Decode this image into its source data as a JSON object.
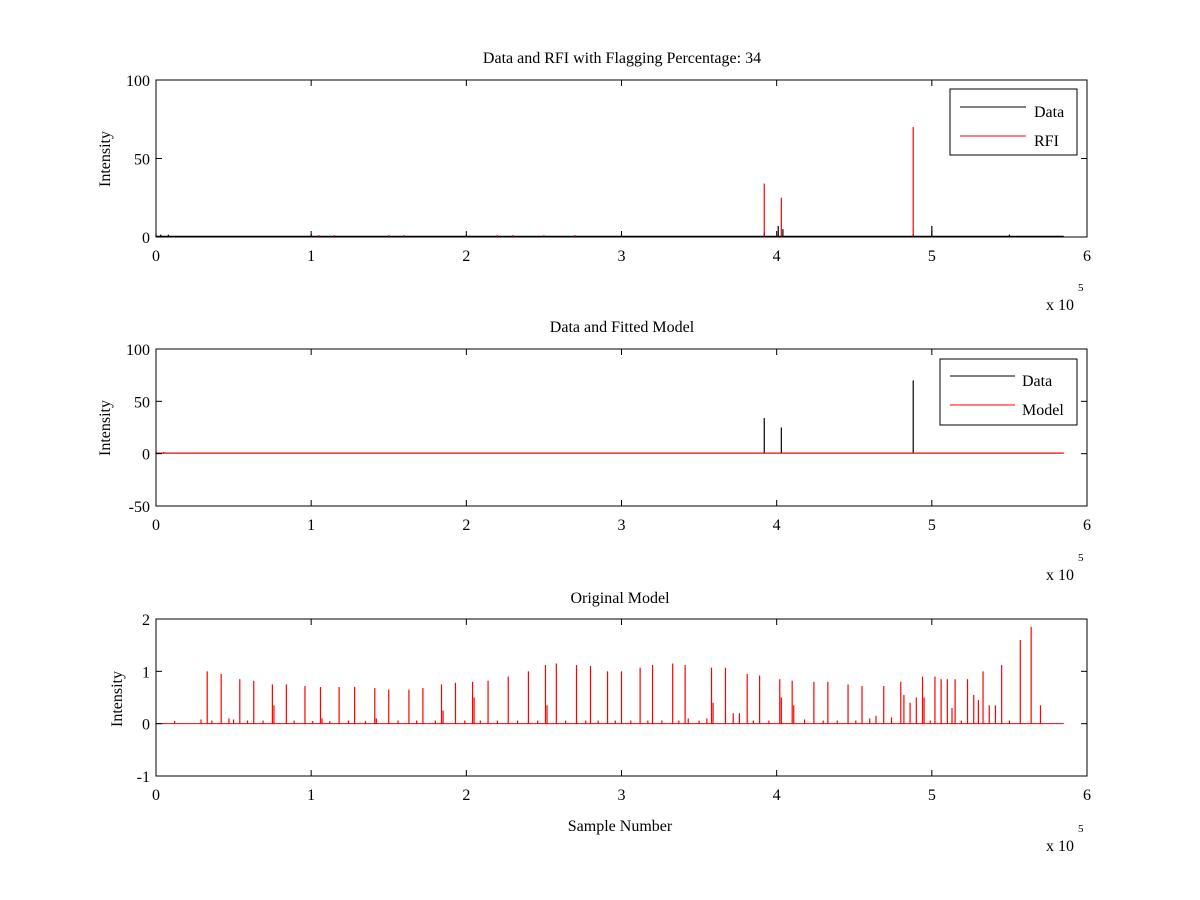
{
  "chart_data": [
    {
      "type": "line",
      "title": "Data and RFI with Flagging Percentage: 34",
      "xlabel": "",
      "ylabel": "Intensity",
      "xlim": [
        0,
        600000
      ],
      "ylim": [
        0,
        100
      ],
      "xticks": [
        0,
        1,
        2,
        3,
        4,
        5,
        6
      ],
      "yticks": [
        0,
        50,
        100
      ],
      "x_multiplier": "x 10",
      "x_multiplier_exp": "5",
      "legend_position": "top-right",
      "series": [
        {
          "name": "Data",
          "color": "#000000",
          "baseline": 0.5,
          "spikes": [
            {
              "x": 0,
              "y": 2
            },
            {
              "x": 3000,
              "y": 1.5
            },
            {
              "x": 8000,
              "y": 1.5
            },
            {
              "x": 100000,
              "y": 1.5
            },
            {
              "x": 200000,
              "y": 1.2
            },
            {
              "x": 300000,
              "y": 1.2
            },
            {
              "x": 392000,
              "y": 3
            },
            {
              "x": 401000,
              "y": 7
            },
            {
              "x": 404000,
              "y": 5
            },
            {
              "x": 488000,
              "y": 2
            },
            {
              "x": 500000,
              "y": 7
            },
            {
              "x": 550000,
              "y": 1.5
            }
          ]
        },
        {
          "name": "RFI",
          "color": "#ff0000",
          "baseline": 0,
          "spikes": [
            {
              "x": 100000,
              "y": 2
            },
            {
              "x": 105000,
              "y": 1.2
            },
            {
              "x": 115000,
              "y": 1.2
            },
            {
              "x": 150000,
              "y": 1.2
            },
            {
              "x": 160000,
              "y": 1.2
            },
            {
              "x": 200000,
              "y": 1.5
            },
            {
              "x": 220000,
              "y": 1.2
            },
            {
              "x": 230000,
              "y": 1.2
            },
            {
              "x": 250000,
              "y": 1.2
            },
            {
              "x": 270000,
              "y": 1.2
            },
            {
              "x": 392000,
              "y": 34
            },
            {
              "x": 403000,
              "y": 25
            },
            {
              "x": 488000,
              "y": 70
            }
          ],
          "extent": [
            0,
            280000
          ]
        }
      ]
    },
    {
      "type": "line",
      "title": "Data and Fitted Model",
      "xlabel": "",
      "ylabel": "Intensity",
      "xlim": [
        0,
        600000
      ],
      "ylim": [
        -50,
        100
      ],
      "xticks": [
        0,
        1,
        2,
        3,
        4,
        5,
        6
      ],
      "yticks": [
        -50,
        0,
        50,
        100
      ],
      "x_multiplier": "x 10",
      "x_multiplier_exp": "5",
      "legend_position": "top-right",
      "series": [
        {
          "name": "Data",
          "color": "#000000",
          "baseline": 0.5,
          "spikes": [
            {
              "x": 0,
              "y": 2
            },
            {
              "x": 5000,
              "y": 1.5
            },
            {
              "x": 20000,
              "y": 0.8
            },
            {
              "x": 95000,
              "y": 1
            },
            {
              "x": 300000,
              "y": 1
            },
            {
              "x": 392000,
              "y": 34
            },
            {
              "x": 403000,
              "y": 25
            },
            {
              "x": 488000,
              "y": 70
            }
          ]
        },
        {
          "name": "Model",
          "color": "#ff0000",
          "baseline": 0.5,
          "spikes": []
        }
      ],
      "x_end": 585000
    },
    {
      "type": "line",
      "title": "Original Model",
      "xlabel": "Sample Number",
      "ylabel": "Intensity",
      "xlim": [
        0,
        600000
      ],
      "ylim": [
        -1,
        2
      ],
      "xticks": [
        0,
        1,
        2,
        3,
        4,
        5,
        6
      ],
      "yticks": [
        -1,
        0,
        1,
        2
      ],
      "x_multiplier": "x 10",
      "x_multiplier_exp": "5",
      "x_end": 585000,
      "series": [
        {
          "name": "",
          "color": "#ff0000",
          "baseline": 0,
          "spikes": [
            {
              "x": 12000,
              "y": 0.05
            },
            {
              "x": 29000,
              "y": 0.08
            },
            {
              "x": 33000,
              "y": 1.0
            },
            {
              "x": 36000,
              "y": 0.06
            },
            {
              "x": 42000,
              "y": 0.95
            },
            {
              "x": 47000,
              "y": 0.1
            },
            {
              "x": 50000,
              "y": 0.08
            },
            {
              "x": 54000,
              "y": 0.85
            },
            {
              "x": 59000,
              "y": 0.06
            },
            {
              "x": 63000,
              "y": 0.82
            },
            {
              "x": 69000,
              "y": 0.06
            },
            {
              "x": 75000,
              "y": 0.75
            },
            {
              "x": 76000,
              "y": 0.35
            },
            {
              "x": 84000,
              "y": 0.75
            },
            {
              "x": 89000,
              "y": 0.06
            },
            {
              "x": 96000,
              "y": 0.72
            },
            {
              "x": 101000,
              "y": 0.05
            },
            {
              "x": 106000,
              "y": 0.7
            },
            {
              "x": 107000,
              "y": 0.1
            },
            {
              "x": 112000,
              "y": 0.05
            },
            {
              "x": 118000,
              "y": 0.7
            },
            {
              "x": 124000,
              "y": 0.06
            },
            {
              "x": 128000,
              "y": 0.7
            },
            {
              "x": 135000,
              "y": 0.05
            },
            {
              "x": 141000,
              "y": 0.68
            },
            {
              "x": 142000,
              "y": 0.1
            },
            {
              "x": 150000,
              "y": 0.65
            },
            {
              "x": 156000,
              "y": 0.06
            },
            {
              "x": 163000,
              "y": 0.65
            },
            {
              "x": 168000,
              "y": 0.06
            },
            {
              "x": 172000,
              "y": 0.68
            },
            {
              "x": 180000,
              "y": 0.06
            },
            {
              "x": 184000,
              "y": 0.75
            },
            {
              "x": 185000,
              "y": 0.25
            },
            {
              "x": 193000,
              "y": 0.78
            },
            {
              "x": 199000,
              "y": 0.06
            },
            {
              "x": 204000,
              "y": 0.8
            },
            {
              "x": 205000,
              "y": 0.5
            },
            {
              "x": 209000,
              "y": 0.06
            },
            {
              "x": 214000,
              "y": 0.82
            },
            {
              "x": 220000,
              "y": 0.06
            },
            {
              "x": 227000,
              "y": 0.9
            },
            {
              "x": 233000,
              "y": 0.06
            },
            {
              "x": 240000,
              "y": 1.0
            },
            {
              "x": 246000,
              "y": 0.06
            },
            {
              "x": 251000,
              "y": 1.12
            },
            {
              "x": 252000,
              "y": 0.35
            },
            {
              "x": 258000,
              "y": 1.15
            },
            {
              "x": 264000,
              "y": 0.06
            },
            {
              "x": 271000,
              "y": 1.12
            },
            {
              "x": 277000,
              "y": 0.06
            },
            {
              "x": 280000,
              "y": 1.1
            },
            {
              "x": 285000,
              "y": 0.06
            },
            {
              "x": 291000,
              "y": 1.0
            },
            {
              "x": 296000,
              "y": 0.06
            },
            {
              "x": 300000,
              "y": 1.0
            },
            {
              "x": 306000,
              "y": 0.06
            },
            {
              "x": 312000,
              "y": 1.07
            },
            {
              "x": 317000,
              "y": 0.06
            },
            {
              "x": 320000,
              "y": 1.12
            },
            {
              "x": 326000,
              "y": 0.06
            },
            {
              "x": 333000,
              "y": 1.15
            },
            {
              "x": 337000,
              "y": 0.06
            },
            {
              "x": 341000,
              "y": 1.12
            },
            {
              "x": 343000,
              "y": 0.1
            },
            {
              "x": 350000,
              "y": 0.06
            },
            {
              "x": 355000,
              "y": 0.1
            },
            {
              "x": 358000,
              "y": 1.07
            },
            {
              "x": 359000,
              "y": 0.4
            },
            {
              "x": 367000,
              "y": 1.07
            },
            {
              "x": 372000,
              "y": 0.2
            },
            {
              "x": 376000,
              "y": 0.2
            },
            {
              "x": 381000,
              "y": 0.95
            },
            {
              "x": 385000,
              "y": 0.06
            },
            {
              "x": 389000,
              "y": 0.92
            },
            {
              "x": 395000,
              "y": 0.06
            },
            {
              "x": 402000,
              "y": 0.85
            },
            {
              "x": 403000,
              "y": 0.5
            },
            {
              "x": 410000,
              "y": 0.82
            },
            {
              "x": 411000,
              "y": 0.35
            },
            {
              "x": 418000,
              "y": 0.08
            },
            {
              "x": 424000,
              "y": 0.8
            },
            {
              "x": 430000,
              "y": 0.06
            },
            {
              "x": 433000,
              "y": 0.8
            },
            {
              "x": 439000,
              "y": 0.06
            },
            {
              "x": 446000,
              "y": 0.75
            },
            {
              "x": 451000,
              "y": 0.06
            },
            {
              "x": 455000,
              "y": 0.72
            },
            {
              "x": 460000,
              "y": 0.1
            },
            {
              "x": 464000,
              "y": 0.15
            },
            {
              "x": 469000,
              "y": 0.72
            },
            {
              "x": 474000,
              "y": 0.12
            },
            {
              "x": 480000,
              "y": 0.8
            },
            {
              "x": 482000,
              "y": 0.55
            },
            {
              "x": 486000,
              "y": 0.4
            },
            {
              "x": 490000,
              "y": 0.5
            },
            {
              "x": 494000,
              "y": 0.9
            },
            {
              "x": 495000,
              "y": 0.5
            },
            {
              "x": 499000,
              "y": 0.06
            },
            {
              "x": 502000,
              "y": 0.9
            },
            {
              "x": 506000,
              "y": 0.85
            },
            {
              "x": 510000,
              "y": 0.85
            },
            {
              "x": 513000,
              "y": 0.3
            },
            {
              "x": 515000,
              "y": 0.85
            },
            {
              "x": 519000,
              "y": 0.06
            },
            {
              "x": 523000,
              "y": 0.85
            },
            {
              "x": 527000,
              "y": 0.55
            },
            {
              "x": 530000,
              "y": 0.45
            },
            {
              "x": 533000,
              "y": 1.0
            },
            {
              "x": 537000,
              "y": 0.35
            },
            {
              "x": 541000,
              "y": 0.35
            },
            {
              "x": 545000,
              "y": 1.12
            },
            {
              "x": 550000,
              "y": 0.06
            },
            {
              "x": 557000,
              "y": 1.6
            },
            {
              "x": 564000,
              "y": 1.85
            },
            {
              "x": 570000,
              "y": 0.35
            }
          ]
        }
      ]
    }
  ]
}
